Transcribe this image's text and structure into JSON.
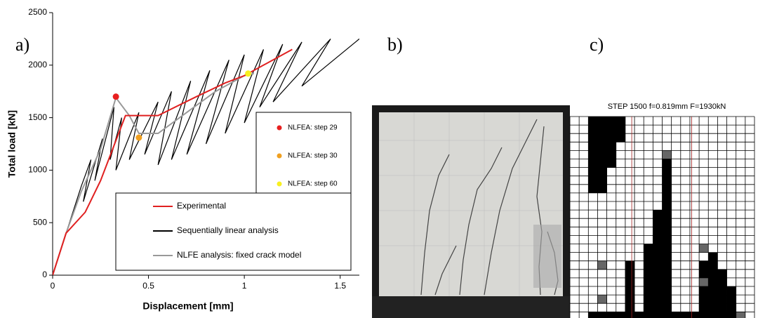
{
  "chart_data": {
    "type": "line",
    "x_label": "Displacement [mm]",
    "y_label": "Total load [kN]",
    "xlim": [
      0,
      1.6
    ],
    "ylim": [
      0,
      2500
    ],
    "xticks": [
      0,
      0.5,
      1,
      1.5
    ],
    "yticks": [
      0,
      500,
      1000,
      1500,
      2000,
      2500
    ],
    "series": [
      {
        "name": "Experimental",
        "color": "#e02020",
        "mode": "lines",
        "x": [
          0,
          0.07,
          0.17,
          0.25,
          0.38,
          0.55,
          0.75,
          0.9,
          1.0,
          1.1,
          1.25
        ],
        "values": [
          0,
          400,
          600,
          900,
          1520,
          1520,
          1700,
          1830,
          1900,
          2000,
          2150
        ]
      },
      {
        "name": "Sequentially linear analysis",
        "color": "#000000",
        "mode": "lines",
        "x": [
          0,
          0.07,
          0.15,
          0.2,
          0.16,
          0.26,
          0.22,
          0.32,
          0.3,
          0.36,
          0.33,
          0.45,
          0.4,
          0.55,
          0.48,
          0.62,
          0.55,
          0.72,
          0.62,
          0.82,
          0.7,
          0.92,
          0.8,
          1.0,
          0.9,
          1.1,
          1.0,
          1.2,
          1.08,
          1.3,
          1.15,
          1.45,
          1.3,
          1.6
        ],
        "values": [
          0,
          400,
          850,
          1100,
          700,
          1300,
          900,
          1600,
          1100,
          1500,
          1000,
          1550,
          1100,
          1650,
          1150,
          1750,
          1050,
          1850,
          1100,
          1950,
          1150,
          2050,
          1250,
          2100,
          1350,
          2150,
          1450,
          2200,
          1600,
          2220,
          1650,
          2250,
          1800,
          2250
        ]
      },
      {
        "name": "NLFE analysis: fixed crack model",
        "color": "#999999",
        "mode": "lines",
        "x": [
          0,
          0.07,
          0.15,
          0.25,
          0.33,
          0.4,
          0.45,
          0.55,
          0.7,
          0.85,
          1.0,
          1.05
        ],
        "values": [
          0,
          400,
          800,
          1200,
          1690,
          1520,
          1350,
          1350,
          1550,
          1750,
          1900,
          1920
        ]
      },
      {
        "name": "NLFEA: step 29",
        "color": "#e82020",
        "mode": "markers",
        "x": [
          0.33
        ],
        "values": [
          1700
        ]
      },
      {
        "name": "NLFEA: step 30",
        "color": "#f0a020",
        "mode": "markers",
        "x": [
          0.45
        ],
        "values": [
          1310
        ]
      },
      {
        "name": "NLFEA: step 60",
        "color": "#f8f020",
        "mode": "markers",
        "x": [
          1.02
        ],
        "values": [
          1920
        ]
      }
    ]
  },
  "panel_labels": [
    "a)",
    "b)",
    "c)"
  ],
  "crack_pattern": {
    "title": "STEP 1500 f=0.819mm F=1930kN"
  }
}
